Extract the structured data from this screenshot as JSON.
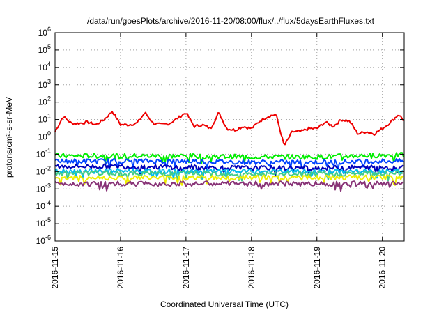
{
  "chart_data": {
    "type": "line",
    "title": "/data/run/goesPlots/archive/2016-11-20/08:00/flux/../flux/5daysEarthFluxes.txt",
    "xlabel": "Coordinated Universal Time (UTC)",
    "ylabel": "protons/cm²-s-sr-MeV",
    "y_scale": "log",
    "ylim": [
      1e-06,
      1000000.0
    ],
    "xlim": [
      "2016-11-15 00:00",
      "2016-11-20 08:00"
    ],
    "grid": true,
    "legend": "none",
    "x_ticks": [
      "2016-11-15",
      "2016-11-16",
      "2016-11-17",
      "2016-11-18",
      "2016-11-19",
      "2016-11-20"
    ],
    "y_ticks": [
      {
        "base": "10",
        "exp": "-6"
      },
      {
        "base": "10",
        "exp": "-5"
      },
      {
        "base": "10",
        "exp": "-4"
      },
      {
        "base": "10",
        "exp": "-3"
      },
      {
        "base": "10",
        "exp": "-2"
      },
      {
        "base": "10",
        "exp": "-1"
      },
      {
        "base": "10",
        "exp": "0"
      },
      {
        "base": "10",
        "exp": "1"
      },
      {
        "base": "10",
        "exp": "2"
      },
      {
        "base": "10",
        "exp": "3"
      },
      {
        "base": "10",
        "exp": "4"
      },
      {
        "base": "10",
        "exp": "5"
      },
      {
        "base": "10",
        "exp": "6"
      }
    ],
    "series": [
      {
        "color": "#ee0000",
        "x": [
          "2016-11-15 00:00",
          "2016-11-15 03:00",
          "2016-11-15 06:00",
          "2016-11-15 09:00",
          "2016-11-15 12:00",
          "2016-11-15 15:00",
          "2016-11-15 18:00",
          "2016-11-15 21:00",
          "2016-11-16 00:00",
          "2016-11-16 03:00",
          "2016-11-16 06:00",
          "2016-11-16 09:00",
          "2016-11-16 12:00",
          "2016-11-16 15:00",
          "2016-11-16 18:00",
          "2016-11-16 21:00",
          "2016-11-17 00:00",
          "2016-11-17 03:00",
          "2016-11-17 06:00",
          "2016-11-17 09:00",
          "2016-11-17 12:00",
          "2016-11-17 15:00",
          "2016-11-17 18:00",
          "2016-11-17 21:00",
          "2016-11-18 00:00",
          "2016-11-18 03:00",
          "2016-11-18 06:00",
          "2016-11-18 09:00",
          "2016-11-18 12:00",
          "2016-11-18 15:00",
          "2016-11-18 18:00",
          "2016-11-18 21:00",
          "2016-11-19 00:00",
          "2016-11-19 03:00",
          "2016-11-19 06:00",
          "2016-11-19 09:00",
          "2016-11-19 12:00",
          "2016-11-19 15:00",
          "2016-11-19 18:00",
          "2016-11-19 21:00",
          "2016-11-20 00:00",
          "2016-11-20 03:00",
          "2016-11-20 06:00",
          "2016-11-20 08:00"
        ],
        "y": [
          2,
          15,
          6,
          6,
          7,
          5,
          10,
          30,
          5,
          5,
          6,
          25,
          6,
          5,
          6,
          12,
          25,
          4,
          5,
          3,
          25,
          3,
          2.5,
          4,
          3,
          8,
          15,
          20,
          0.3,
          2,
          2,
          3,
          3,
          7,
          4,
          10,
          8,
          1.5,
          2,
          1.5,
          3,
          7,
          20,
          8
        ]
      },
      {
        "color": "#00ee00",
        "x": [
          "2016-11-15 00:00",
          "2016-11-16 00:00",
          "2016-11-17 00:00",
          "2016-11-18 00:00",
          "2016-11-19 00:00",
          "2016-11-20 00:00",
          "2016-11-20 08:00"
        ],
        "y": [
          0.08,
          0.08,
          0.08,
          0.07,
          0.07,
          0.09,
          0.09
        ]
      },
      {
        "color": "#0044ff",
        "x": [
          "2016-11-15 00:00",
          "2016-11-16 00:00",
          "2016-11-17 00:00",
          "2016-11-18 00:00",
          "2016-11-19 00:00",
          "2016-11-20 00:00",
          "2016-11-20 08:00"
        ],
        "y": [
          0.04,
          0.04,
          0.04,
          0.035,
          0.035,
          0.04,
          0.04
        ]
      },
      {
        "color": "#0000bb",
        "x": [
          "2016-11-15 00:00",
          "2016-11-16 00:00",
          "2016-11-17 00:00",
          "2016-11-18 00:00",
          "2016-11-19 00:00",
          "2016-11-20 00:00",
          "2016-11-20 08:00"
        ],
        "y": [
          0.02,
          0.02,
          0.018,
          0.016,
          0.016,
          0.018,
          0.018
        ]
      },
      {
        "color": "#00bbee",
        "x": [
          "2016-11-15 00:00",
          "2016-11-16 00:00",
          "2016-11-17 00:00",
          "2016-11-18 00:00",
          "2016-11-19 00:00",
          "2016-11-20 00:00",
          "2016-11-20 08:00"
        ],
        "y": [
          0.011,
          0.011,
          0.01,
          0.01,
          0.01,
          0.01,
          0.01
        ]
      },
      {
        "color": "#44cc88",
        "x": [
          "2016-11-15 00:00",
          "2016-11-16 00:00",
          "2016-11-17 00:00",
          "2016-11-18 00:00",
          "2016-11-19 00:00",
          "2016-11-20 00:00",
          "2016-11-20 08:00"
        ],
        "y": [
          0.008,
          0.008,
          0.008,
          0.007,
          0.007,
          0.008,
          0.008
        ]
      },
      {
        "color": "#eeee00",
        "x": [
          "2016-11-15 00:00",
          "2016-11-16 00:00",
          "2016-11-17 00:00",
          "2016-11-18 00:00",
          "2016-11-19 00:00",
          "2016-11-20 00:00",
          "2016-11-20 08:00"
        ],
        "y": [
          0.0045,
          0.0045,
          0.0045,
          0.0045,
          0.0045,
          0.0045,
          0.0045
        ]
      },
      {
        "color": "#883377",
        "x": [
          "2016-11-15 00:00",
          "2016-11-16 00:00",
          "2016-11-17 00:00",
          "2016-11-18 00:00",
          "2016-11-19 00:00",
          "2016-11-20 00:00",
          "2016-11-20 08:00"
        ],
        "y": [
          0.002,
          0.002,
          0.002,
          0.002,
          0.002,
          0.002,
          0.002
        ]
      }
    ]
  }
}
